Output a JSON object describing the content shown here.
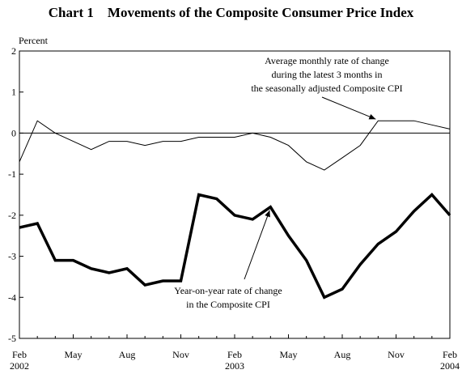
{
  "chart_data": {
    "type": "line",
    "title": "Chart 1    Movements of the Composite Consumer Price Index",
    "ylabel": "Percent",
    "ylim": [
      -5,
      2
    ],
    "yticks": [
      2,
      1,
      0,
      -1,
      -2,
      -3,
      -4,
      -5
    ],
    "xticks": [
      {
        "label": "Feb",
        "year": "2002"
      },
      {
        "label": "May",
        "year": ""
      },
      {
        "label": "Aug",
        "year": ""
      },
      {
        "label": "Nov",
        "year": ""
      },
      {
        "label": "Feb",
        "year": "2003"
      },
      {
        "label": "May",
        "year": ""
      },
      {
        "label": "Aug",
        "year": ""
      },
      {
        "label": "Nov",
        "year": ""
      },
      {
        "label": "Feb",
        "year": "2004"
      }
    ],
    "x": [
      "Feb 2002",
      "Mar 2002",
      "Apr 2002",
      "May 2002",
      "Jun 2002",
      "Jul 2002",
      "Aug 2002",
      "Sep 2002",
      "Oct 2002",
      "Nov 2002",
      "Dec 2002",
      "Jan 2003",
      "Feb 2003",
      "Mar 2003",
      "Apr 2003",
      "May 2003",
      "Jun 2003",
      "Jul 2003",
      "Aug 2003",
      "Sep 2003",
      "Oct 2003",
      "Nov 2003",
      "Dec 2003",
      "Jan 2004",
      "Feb 2004"
    ],
    "series": [
      {
        "name": "Average monthly rate of change during the latest 3 months in the seasonally adjusted Composite CPI",
        "color": "#000000",
        "values": [
          -0.7,
          0.3,
          0.0,
          -0.2,
          -0.4,
          -0.2,
          -0.2,
          -0.3,
          -0.2,
          -0.2,
          -0.1,
          -0.1,
          -0.1,
          0.0,
          -0.1,
          -0.3,
          -0.7,
          -0.9,
          -0.6,
          -0.3,
          0.3,
          0.3,
          0.3,
          0.2,
          0.1
        ]
      },
      {
        "name": "Year-on-year rate of change in the Composite CPI",
        "color": "#000000",
        "values": [
          -2.3,
          -2.2,
          -3.1,
          -3.1,
          -3.3,
          -3.4,
          -3.3,
          -3.7,
          -3.6,
          -3.6,
          -1.5,
          -1.6,
          -2.0,
          -2.1,
          -1.8,
          -2.5,
          -3.1,
          -4.0,
          -3.8,
          -3.2,
          -2.7,
          -2.4,
          -1.9,
          -1.5,
          -2.0
        ]
      }
    ],
    "annotations": [
      {
        "lines": [
          "Average monthly rate of change",
          "during the latest 3 months in",
          "the seasonally adjusted Composite CPI"
        ]
      },
      {
        "lines": [
          "Year-on-year rate of change",
          "in the Composite CPI"
        ]
      }
    ],
    "grid": false,
    "reference_line": 0
  }
}
